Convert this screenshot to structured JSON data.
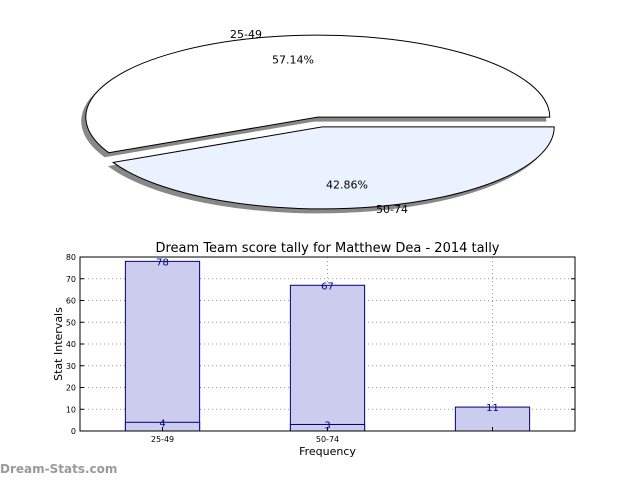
{
  "watermark": "Dream-Stats.com",
  "chart_data": [
    {
      "type": "pie",
      "style": "3d-exploded",
      "slices": [
        {
          "label": "25-49",
          "value": 57.14,
          "pct_label": "57.14%",
          "color": "#ffffff"
        },
        {
          "label": "50-74",
          "value": 42.86,
          "pct_label": "42.86%",
          "color": "#eaf1ff"
        }
      ]
    },
    {
      "type": "bar",
      "title": "Dream Team score tally for Matthew Dea - 2014 tally",
      "xlabel": "Frequency",
      "ylabel": "Stat Intervals",
      "ylim": [
        0,
        80
      ],
      "yticks": [
        "0",
        "10",
        "20",
        "30",
        "40",
        "50",
        "60",
        "70",
        "80"
      ],
      "grid": true,
      "categories": [
        "25-49",
        "50-74",
        ""
      ],
      "series": [
        {
          "values": [
            78,
            67,
            11
          ],
          "value_labels": [
            "78",
            "67",
            "11"
          ],
          "color": "#ccccee"
        },
        {
          "values": [
            4,
            3,
            null
          ],
          "value_labels": [
            "4",
            "3",
            ""
          ],
          "color": "#ccccee"
        }
      ],
      "edge_color": "#000080",
      "label_color": "#000080"
    }
  ]
}
